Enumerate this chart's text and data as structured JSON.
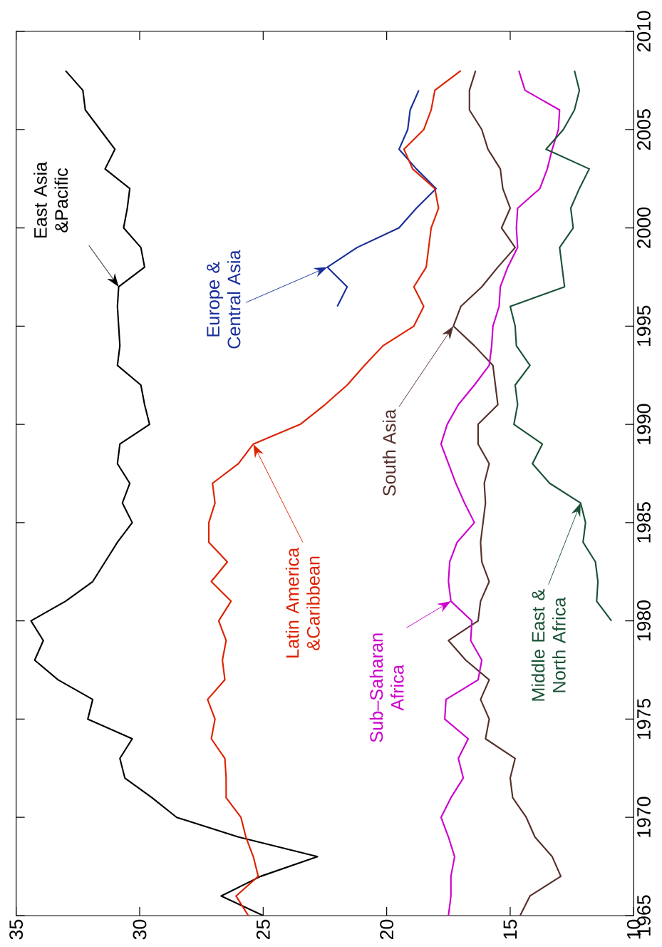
{
  "chart_data": {
    "type": "line",
    "series": [
      {
        "name": "East Asia &Pacific",
        "color": "#000000",
        "x": [
          25.0,
          26.7,
          25.1,
          22.8,
          26.0,
          28.5,
          29.5,
          30.6,
          30.8,
          30.3,
          32.1,
          31.9,
          33.3,
          34.25,
          33.9,
          34.4,
          33.0,
          31.9,
          31.4,
          30.9,
          30.3,
          30.7,
          30.4,
          30.9,
          30.8,
          29.6,
          29.8,
          29.95,
          30.9,
          30.8,
          30.85,
          30.9,
          30.85,
          29.8,
          29.95,
          30.65,
          30.5,
          30.4,
          31.4,
          31.0,
          31.6,
          32.2,
          32.3,
          33.0
        ],
        "values": [
          1965,
          1966,
          1967,
          1968,
          1969,
          1970,
          1971,
          1972,
          1973,
          1974,
          1975,
          1976,
          1977,
          1978,
          1979,
          1980,
          1981,
          1982,
          1983,
          1984,
          1985,
          1986,
          1987,
          1988,
          1989,
          1990,
          1991,
          1992,
          1993,
          1994,
          1995,
          1996,
          1997,
          1998,
          1999,
          2000,
          2001,
          2002,
          2003,
          2004,
          2005,
          2006,
          2007,
          2008
        ]
      },
      {
        "name": "Europe & Central Asia",
        "color": "#1a2f99",
        "x": [
          22.0,
          21.6,
          22.4,
          21.2,
          19.5,
          18.8,
          18.0,
          18.8,
          19.5,
          19.15,
          19.05,
          18.7
        ],
        "values": [
          1996,
          1997,
          1998,
          1999,
          2000,
          2001,
          2002,
          2003,
          2004,
          2005,
          2006,
          2007
        ]
      },
      {
        "name": "Latin America &Caribbean",
        "color": "#dd2200",
        "x": [
          25.6,
          26.1,
          25.2,
          25.4,
          25.7,
          25.9,
          26.5,
          26.5,
          26.55,
          27.1,
          26.95,
          27.25,
          26.55,
          26.65,
          26.5,
          26.8,
          26.3,
          27.1,
          26.45,
          27.2,
          27.2,
          26.95,
          27.05,
          26.0,
          25.4,
          23.5,
          22.5,
          21.6,
          20.9,
          20.15,
          18.9,
          18.5,
          18.9,
          18.4,
          18.3,
          18.2,
          17.9,
          18.05,
          18.95,
          19.3,
          18.5,
          18.2,
          18.05,
          17.0
        ],
        "values": [
          1965,
          1966,
          1967,
          1968,
          1969,
          1970,
          1971,
          1972,
          1973,
          1974,
          1975,
          1976,
          1977,
          1978,
          1979,
          1980,
          1981,
          1982,
          1983,
          1984,
          1985,
          1986,
          1987,
          1988,
          1989,
          1990,
          1991,
          1992,
          1993,
          1994,
          1995,
          1996,
          1997,
          1998,
          1999,
          2000,
          2001,
          2002,
          2003,
          2004,
          2005,
          2006,
          2007,
          2008
        ]
      },
      {
        "name": "South Asia",
        "color": "#55302c",
        "x": [
          14.6,
          14.2,
          12.95,
          13.3,
          14.0,
          14.35,
          14.9,
          15.0,
          14.8,
          16.0,
          15.85,
          16.2,
          15.85,
          16.8,
          17.5,
          16.3,
          16.2,
          15.85,
          16.15,
          16.2,
          16.1,
          16.0,
          16.05,
          15.85,
          16.3,
          16.3,
          15.5,
          15.6,
          15.7,
          16.45,
          17.3,
          17.0,
          16.15,
          15.5,
          14.8,
          15.35,
          15.0,
          15.3,
          15.4,
          15.9,
          16.15,
          16.65,
          16.65,
          16.4
        ],
        "values": [
          1965,
          1966,
          1967,
          1968,
          1969,
          1970,
          1971,
          1972,
          1973,
          1974,
          1975,
          1976,
          1977,
          1978,
          1979,
          1980,
          1981,
          1982,
          1983,
          1984,
          1985,
          1986,
          1987,
          1988,
          1989,
          1990,
          1991,
          1992,
          1993,
          1994,
          1995,
          1996,
          1997,
          1998,
          1999,
          2000,
          2001,
          2002,
          2003,
          2004,
          2005,
          2006,
          2007,
          2008
        ]
      },
      {
        "name": "Sub–Saharan Africa",
        "color": "#cc00cc",
        "x": [
          17.5,
          17.4,
          17.4,
          17.25,
          17.5,
          17.8,
          17.4,
          16.9,
          17.1,
          16.7,
          17.65,
          17.6,
          16.3,
          16.15,
          16.6,
          16.55,
          17.4,
          17.5,
          17.45,
          17.15,
          16.45,
          16.85,
          17.2,
          17.5,
          17.8,
          17.55,
          17.1,
          16.45,
          15.85,
          15.75,
          15.7,
          15.45,
          15.4,
          15.1,
          14.7,
          14.75,
          14.7,
          13.8,
          13.5,
          13.3,
          13.05,
          13.0,
          14.4,
          14.65
        ],
        "values": [
          1965,
          1966,
          1967,
          1968,
          1969,
          1970,
          1971,
          1972,
          1973,
          1974,
          1975,
          1976,
          1977,
          1978,
          1979,
          1980,
          1981,
          1982,
          1983,
          1984,
          1985,
          1986,
          1987,
          1988,
          1989,
          1990,
          1991,
          1992,
          1993,
          1994,
          1995,
          1996,
          1997,
          1998,
          1999,
          2000,
          2001,
          2002,
          2003,
          2004,
          2005,
          2006,
          2007,
          2008
        ]
      },
      {
        "name": "Middle East & North Africa",
        "color": "#1b5236",
        "x": [
          10.9,
          11.5,
          11.45,
          11.55,
          12.05,
          11.95,
          12.15,
          13.4,
          14.1,
          13.7,
          14.85,
          14.7,
          14.8,
          14.2,
          14.75,
          14.8,
          15.0,
          12.8,
          12.9,
          13.0,
          12.45,
          12.55,
          12.2,
          11.8,
          13.55,
          12.85,
          12.4,
          12.2,
          12.4
        ],
        "values": [
          1980,
          1981,
          1982,
          1983,
          1984,
          1985,
          1986,
          1987,
          1988,
          1989,
          1990,
          1991,
          1992,
          1993,
          1994,
          1995,
          1996,
          1997,
          1998,
          1999,
          2000,
          2001,
          2002,
          2003,
          2004,
          2005,
          2006,
          2007,
          2008
        ]
      }
    ],
    "xlim": [
      35,
      10
    ],
    "ylim": [
      1965,
      2010
    ],
    "xticks": [
      35,
      30,
      25,
      20,
      15,
      10
    ],
    "yticks": [
      1965,
      1970,
      1975,
      1980,
      1985,
      1990,
      1995,
      2000,
      2005,
      2010
    ],
    "line_style": "solid"
  }
}
